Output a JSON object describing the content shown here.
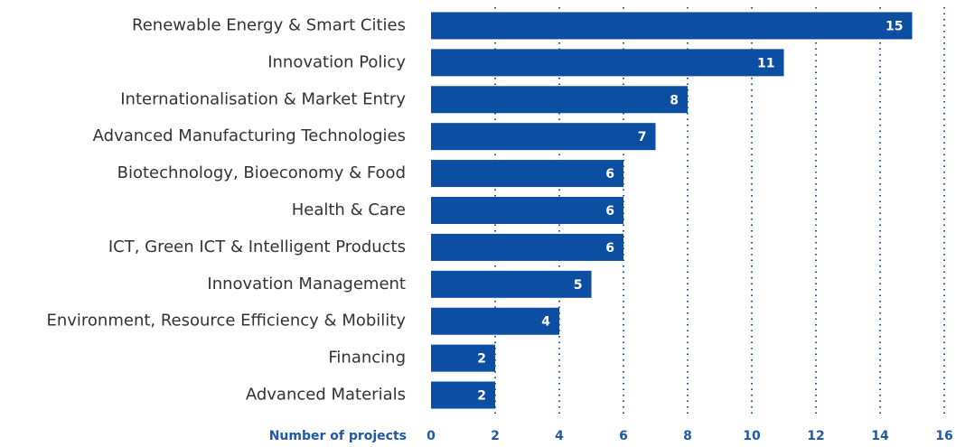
{
  "chart_data": {
    "type": "barh",
    "categories": [
      "Renewable Energy & Smart Cities",
      "Innovation Policy",
      "Internationalisation & Market Entry",
      "Advanced Manufacturing Technologies",
      "Biotechnology, Bioeconomy & Food",
      "Health & Care",
      "ICT, Green ICT & Intelligent Products",
      "Innovation Management",
      "Environment, Resource Efficiency & Mobility",
      "Financing",
      "Advanced Materials"
    ],
    "values": [
      15,
      11,
      8,
      7,
      6,
      6,
      6,
      5,
      4,
      2,
      2
    ],
    "color": "#0b4ea2",
    "x_label": "Number of projects",
    "xlim": [
      0,
      16
    ],
    "xticks": [
      0,
      2,
      4,
      6,
      8,
      10,
      12,
      14,
      16
    ],
    "grid": true
  }
}
